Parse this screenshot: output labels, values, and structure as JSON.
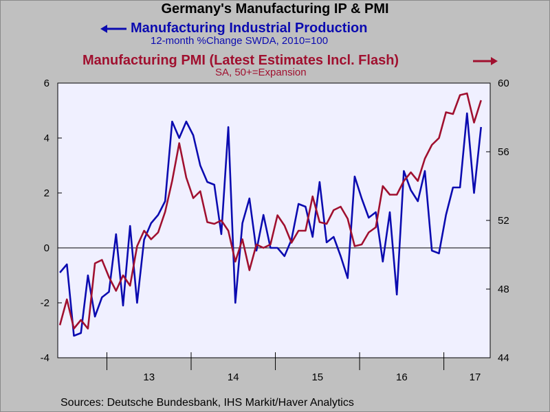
{
  "chart_data": {
    "type": "line",
    "title": "Germany's Manufacturing IP & PMI",
    "series": [
      {
        "name": "Manufacturing Industrial Production",
        "subtitle": "12-month %Change     SWDA, 2010=100",
        "axis": "left",
        "color": "#0b0bb0",
        "values": [
          -0.9,
          -0.6,
          -3.2,
          -3.1,
          -1.0,
          -2.5,
          -1.8,
          -1.6,
          0.5,
          -2.1,
          0.8,
          -2.0,
          0.3,
          0.9,
          1.2,
          1.7,
          4.6,
          4.0,
          4.6,
          4.1,
          3.0,
          2.4,
          2.3,
          0.5,
          4.4,
          -2.0,
          0.9,
          1.8,
          -0.1,
          1.2,
          0.0,
          0.0,
          -0.3,
          0.3,
          1.6,
          1.5,
          0.4,
          2.4,
          0.2,
          0.4,
          -0.3,
          -1.1,
          2.6,
          1.8,
          1.1,
          1.3,
          -0.5,
          1.3,
          -1.7,
          2.8,
          2.1,
          1.7,
          2.8,
          -0.1,
          -0.2,
          1.2,
          2.2,
          2.2,
          4.9,
          2.0,
          4.4
        ]
      },
      {
        "name": "Manufacturing PMI (Latest Estimates Incl. Flash)",
        "subtitle": "SA, 50+=Expansion",
        "axis": "right",
        "color": "#a0102f",
        "values": [
          45.9,
          47.4,
          45.7,
          46.2,
          45.7,
          49.5,
          49.7,
          48.7,
          47.9,
          48.8,
          48.2,
          50.5,
          51.4,
          50.9,
          51.3,
          52.5,
          54.3,
          56.5,
          54.5,
          53.3,
          53.7,
          51.9,
          51.8,
          52.0,
          51.4,
          49.6,
          50.9,
          49.1,
          50.6,
          50.4,
          50.6,
          52.3,
          51.7,
          50.7,
          51.4,
          51.4,
          53.4,
          51.9,
          51.8,
          52.6,
          52.8,
          52.1,
          50.5,
          50.6,
          51.3,
          51.6,
          54.0,
          53.5,
          53.5,
          54.3,
          54.8,
          54.3,
          55.6,
          56.4,
          56.8,
          58.3,
          58.2,
          59.3,
          59.4,
          57.7,
          59.0
        ]
      }
    ],
    "x_ticks": [
      "13",
      "14",
      "15",
      "16",
      "17"
    ],
    "y_left": {
      "lim": [
        -4,
        6
      ],
      "ticks": [
        "-4",
        "-2",
        "0",
        "2",
        "4",
        "6"
      ]
    },
    "y_right": {
      "lim": [
        44,
        60
      ],
      "ticks": [
        "44",
        "48",
        "52",
        "56",
        "60"
      ]
    },
    "reference_line": 0,
    "source": "Sources:  Deutsche Bundesbank, IHS Markit/Haver Analytics"
  },
  "colors": {
    "background": "#c0c0c0",
    "plot_background": "#f0f0ff"
  }
}
